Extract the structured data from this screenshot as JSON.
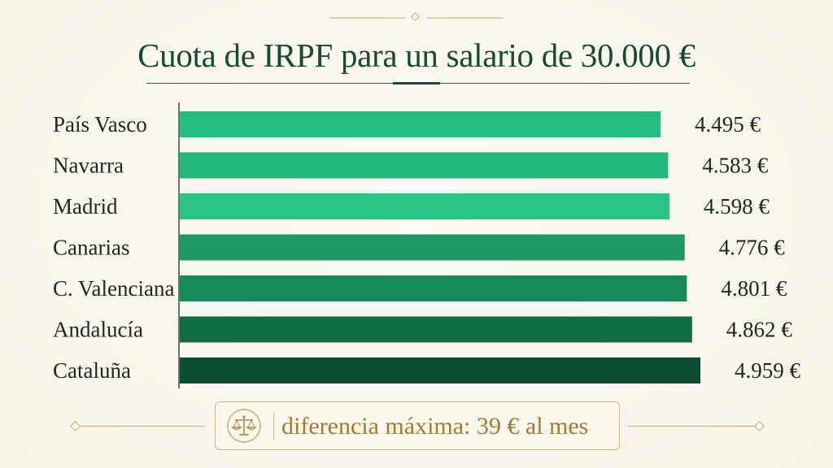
{
  "chart_data": {
    "type": "bar",
    "orientation": "horizontal",
    "title": "Cuota de IRPF para un salario de 30.000 €",
    "categories": [
      "País Vasco",
      "Navarra",
      "Madrid",
      "Canarias",
      "C. Valenciana",
      "Andalucía",
      "Cataluña"
    ],
    "values": [
      4495,
      4583,
      4598,
      4776,
      4801,
      4862,
      4959
    ],
    "value_labels": [
      "4.495 €",
      "4.583 €",
      "4.598 €",
      "4.776 €",
      "4.801 €",
      "4.862 €",
      "4.959 €"
    ],
    "bar_colors": [
      "#23bd82",
      "#22b87e",
      "#2ac287",
      "#1e9a69",
      "#178a5b",
      "#0f6c45",
      "#0b4d32"
    ],
    "xlabel": "",
    "ylabel": "",
    "grid": false,
    "legend": "none"
  },
  "annotation": {
    "text": "diferencia máxima: 39 € al mes",
    "icon": "scales-icon"
  },
  "colors": {
    "title": "#184a35",
    "gold": "#c9ab6e",
    "annotation_text": "#a47a31"
  }
}
